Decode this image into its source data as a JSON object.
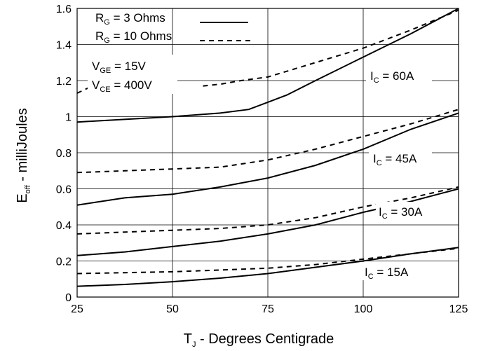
{
  "chart_data": {
    "type": "line",
    "xlabel": {
      "main": "T",
      "sub": "J",
      "rest": " - Degrees Centigrade"
    },
    "ylabel": {
      "main": "E",
      "sub": "off",
      "rest": " - milliJoules"
    },
    "xlim": [
      25,
      125
    ],
    "ylim": [
      0,
      1.6
    ],
    "xticks": [
      "25",
      "50",
      "75",
      "100",
      "125"
    ],
    "yticks": [
      "0",
      "0.2",
      "0.4",
      "0.6",
      "0.8",
      "1",
      "1.2",
      "1.4",
      "1.6"
    ],
    "grid": true,
    "legend_placement": "top-left",
    "legend": [
      {
        "main": "R",
        "sub": "G",
        "rest": " = 3 Ohms",
        "style": "solid"
      },
      {
        "main": "R",
        "sub": "G",
        "rest": " = 10 Ohms",
        "style": "dashed"
      }
    ],
    "conditions": [
      {
        "main": "V",
        "sub": "GE",
        "rest": " = 15V"
      },
      {
        "main": "V",
        "sub": "CE",
        "rest": " = 400V"
      }
    ],
    "curve_labels": [
      {
        "main": "I",
        "sub": "C",
        "rest": " = 60A"
      },
      {
        "main": "I",
        "sub": "C",
        "rest": " = 45A"
      },
      {
        "main": "I",
        "sub": "C",
        "rest": " = 30A"
      },
      {
        "main": "I",
        "sub": "C",
        "rest": " = 15A"
      }
    ],
    "series": [
      {
        "group": "60A",
        "style": "solid",
        "x": [
          25,
          50,
          62.5,
          70,
          75,
          80,
          87.5,
          100,
          112.5,
          125
        ],
        "y": [
          0.97,
          1.0,
          1.02,
          1.04,
          1.08,
          1.12,
          1.2,
          1.33,
          1.46,
          1.6
        ]
      },
      {
        "group": "60A",
        "style": "dashed",
        "x": [
          25,
          30,
          37.5
        ],
        "y": [
          1.13,
          1.18,
          1.24
        ]
      },
      {
        "group": "60A",
        "style": "dashed",
        "x": [
          58,
          62.5,
          68,
          75,
          87.5,
          100,
          112.5,
          125
        ],
        "y": [
          1.17,
          1.18,
          1.2,
          1.22,
          1.3,
          1.38,
          1.48,
          1.59
        ]
      },
      {
        "group": "45A",
        "style": "solid",
        "x": [
          25,
          37.5,
          50,
          62.5,
          75,
          87.5,
          100,
          112.5,
          125
        ],
        "y": [
          0.51,
          0.55,
          0.57,
          0.61,
          0.66,
          0.73,
          0.82,
          0.93,
          1.02
        ]
      },
      {
        "group": "45A",
        "style": "dashed",
        "x": [
          25,
          37.5,
          50,
          62.5,
          75,
          87.5,
          100,
          112.5,
          125
        ],
        "y": [
          0.69,
          0.7,
          0.71,
          0.72,
          0.76,
          0.82,
          0.89,
          0.96,
          1.04
        ]
      },
      {
        "group": "30A",
        "style": "solid",
        "x": [
          25,
          37.5,
          50,
          62.5,
          75,
          87.5,
          100,
          112.5,
          125
        ],
        "y": [
          0.23,
          0.25,
          0.28,
          0.31,
          0.35,
          0.4,
          0.47,
          0.53,
          0.6
        ]
      },
      {
        "group": "30A",
        "style": "dashed",
        "x": [
          25,
          37.5,
          50,
          62.5,
          75,
          87.5,
          100,
          112.5,
          125
        ],
        "y": [
          0.35,
          0.36,
          0.37,
          0.38,
          0.4,
          0.44,
          0.5,
          0.55,
          0.61
        ]
      },
      {
        "group": "15A",
        "style": "solid",
        "x": [
          25,
          37.5,
          50,
          62.5,
          75,
          87.5,
          100,
          112.5,
          125
        ],
        "y": [
          0.06,
          0.07,
          0.085,
          0.105,
          0.13,
          0.165,
          0.2,
          0.24,
          0.275
        ]
      },
      {
        "group": "15A",
        "style": "dashed",
        "x": [
          25,
          37.5,
          50,
          62.5,
          75,
          87.5,
          100,
          112.5,
          125
        ],
        "y": [
          0.13,
          0.135,
          0.14,
          0.15,
          0.16,
          0.18,
          0.21,
          0.24,
          0.27
        ]
      }
    ]
  }
}
